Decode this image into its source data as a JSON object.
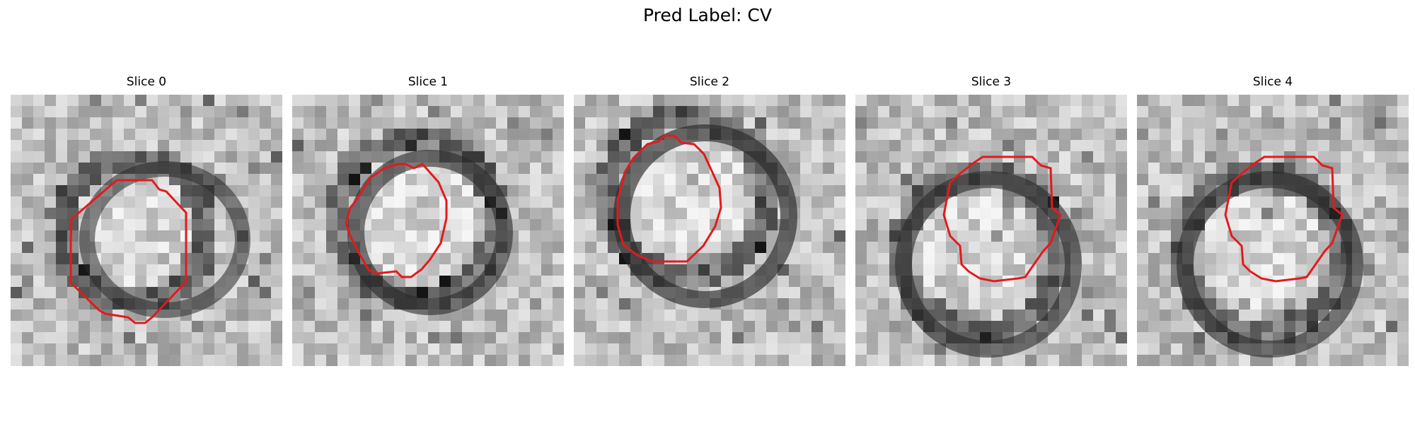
{
  "figure": {
    "title": "Pred Label: CV",
    "contour_color": "#e31a1c",
    "colormap": "gray"
  },
  "panels": [
    {
      "title": "Slice 0",
      "image": "grayscale-microscopy-slice",
      "overlay": "red-contour"
    },
    {
      "title": "Slice 1",
      "image": "grayscale-microscopy-slice",
      "overlay": "red-contour"
    },
    {
      "title": "Slice 2",
      "image": "grayscale-microscopy-slice",
      "overlay": "red-contour"
    },
    {
      "title": "Slice 3",
      "image": "grayscale-microscopy-slice",
      "overlay": "red-contour"
    },
    {
      "title": "Slice 4",
      "image": "grayscale-microscopy-slice",
      "overlay": "red-contour"
    }
  ]
}
